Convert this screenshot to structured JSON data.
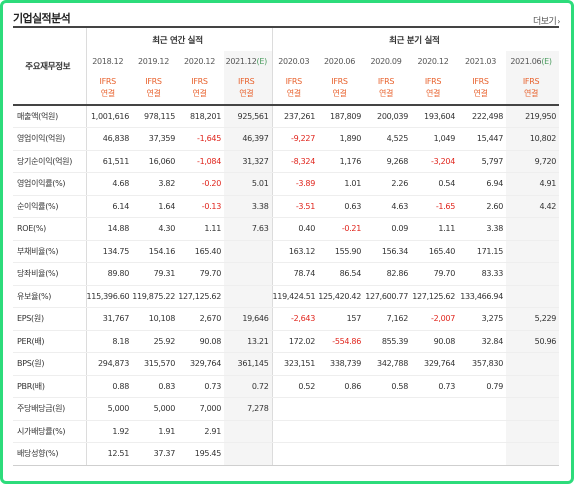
{
  "header": {
    "title": "기업실적분석",
    "more_label": "더보기",
    "more_icon": "chevron-right-icon"
  },
  "table": {
    "row_header_label": "주요재무정보",
    "annual_group_label": "최근 연간 실적",
    "quarterly_group_label": "최근 분기 실적",
    "annual_periods": [
      "2018.12",
      "2019.12",
      "2020.12",
      "2021.12"
    ],
    "annual_estimate_mark": "(E)",
    "quarterly_periods": [
      "2020.03",
      "2020.06",
      "2020.09",
      "2020.12",
      "2021.03",
      "2021.06"
    ],
    "quarterly_estimate_mark": "(E)",
    "ifrs_line1": "IFRS",
    "ifrs_line2": "연결",
    "negative_color": "#e0261e",
    "ifrs_color": "#e8612c",
    "rows": [
      {
        "label": "매출액(억원)",
        "values": [
          "1,001,616",
          "978,115",
          "818,201",
          "925,561",
          "237,261",
          "187,809",
          "200,039",
          "193,604",
          "222,498",
          "219,950"
        ]
      },
      {
        "label": "영업이익(억원)",
        "values": [
          "46,838",
          "37,359",
          "-1,645",
          "46,397",
          "-9,227",
          "1,890",
          "4,525",
          "1,049",
          "15,447",
          "10,802"
        ]
      },
      {
        "label": "당기순이익(억원)",
        "values": [
          "61,511",
          "16,060",
          "-1,084",
          "31,327",
          "-8,324",
          "1,176",
          "9,268",
          "-3,204",
          "5,797",
          "9,720"
        ]
      },
      {
        "label": "영업이익률(%)",
        "values": [
          "4.68",
          "3.82",
          "-0.20",
          "5.01",
          "-3.89",
          "1.01",
          "2.26",
          "0.54",
          "6.94",
          "4.91"
        ]
      },
      {
        "label": "순이익률(%)",
        "values": [
          "6.14",
          "1.64",
          "-0.13",
          "3.38",
          "-3.51",
          "0.63",
          "4.63",
          "-1.65",
          "2.60",
          "4.42"
        ]
      },
      {
        "label": "ROE(%)",
        "values": [
          "14.88",
          "4.30",
          "1.11",
          "7.63",
          "0.40",
          "-0.21",
          "0.09",
          "1.11",
          "3.38",
          ""
        ]
      },
      {
        "label": "부채비율(%)",
        "values": [
          "134.75",
          "154.16",
          "165.40",
          "",
          "163.12",
          "155.90",
          "156.34",
          "165.40",
          "171.15",
          ""
        ]
      },
      {
        "label": "당좌비율(%)",
        "values": [
          "89.80",
          "79.31",
          "79.70",
          "",
          "78.74",
          "86.54",
          "82.86",
          "79.70",
          "83.33",
          ""
        ]
      },
      {
        "label": "유보율(%)",
        "values": [
          "115,396.60",
          "119,875.22",
          "127,125.62",
          "",
          "119,424.51",
          "125,420.42",
          "127,600.77",
          "127,125.62",
          "133,466.94",
          ""
        ]
      },
      {
        "label": "EPS(원)",
        "values": [
          "31,767",
          "10,108",
          "2,670",
          "19,646",
          "-2,643",
          "157",
          "7,162",
          "-2,007",
          "3,275",
          "5,229"
        ]
      },
      {
        "label": "PER(배)",
        "values": [
          "8.18",
          "25.92",
          "90.08",
          "13.21",
          "172.02",
          "-554.86",
          "855.39",
          "90.08",
          "32.84",
          "50.96"
        ]
      },
      {
        "label": "BPS(원)",
        "values": [
          "294,873",
          "315,570",
          "329,764",
          "361,145",
          "323,151",
          "338,739",
          "342,788",
          "329,764",
          "357,830",
          ""
        ]
      },
      {
        "label": "PBR(배)",
        "values": [
          "0.88",
          "0.83",
          "0.73",
          "0.72",
          "0.52",
          "0.86",
          "0.58",
          "0.73",
          "0.79",
          ""
        ]
      },
      {
        "label": "주당배당금(원)",
        "values": [
          "5,000",
          "5,000",
          "7,000",
          "7,278",
          "",
          "",
          "",
          "",
          "",
          ""
        ]
      },
      {
        "label": "시가배당률(%)",
        "values": [
          "1.92",
          "1.91",
          "2.91",
          "",
          "",
          "",
          "",
          "",
          "",
          ""
        ]
      },
      {
        "label": "배당성향(%)",
        "values": [
          "12.51",
          "37.37",
          "195.45",
          "",
          "",
          "",
          "",
          "",
          "",
          ""
        ]
      }
    ]
  }
}
